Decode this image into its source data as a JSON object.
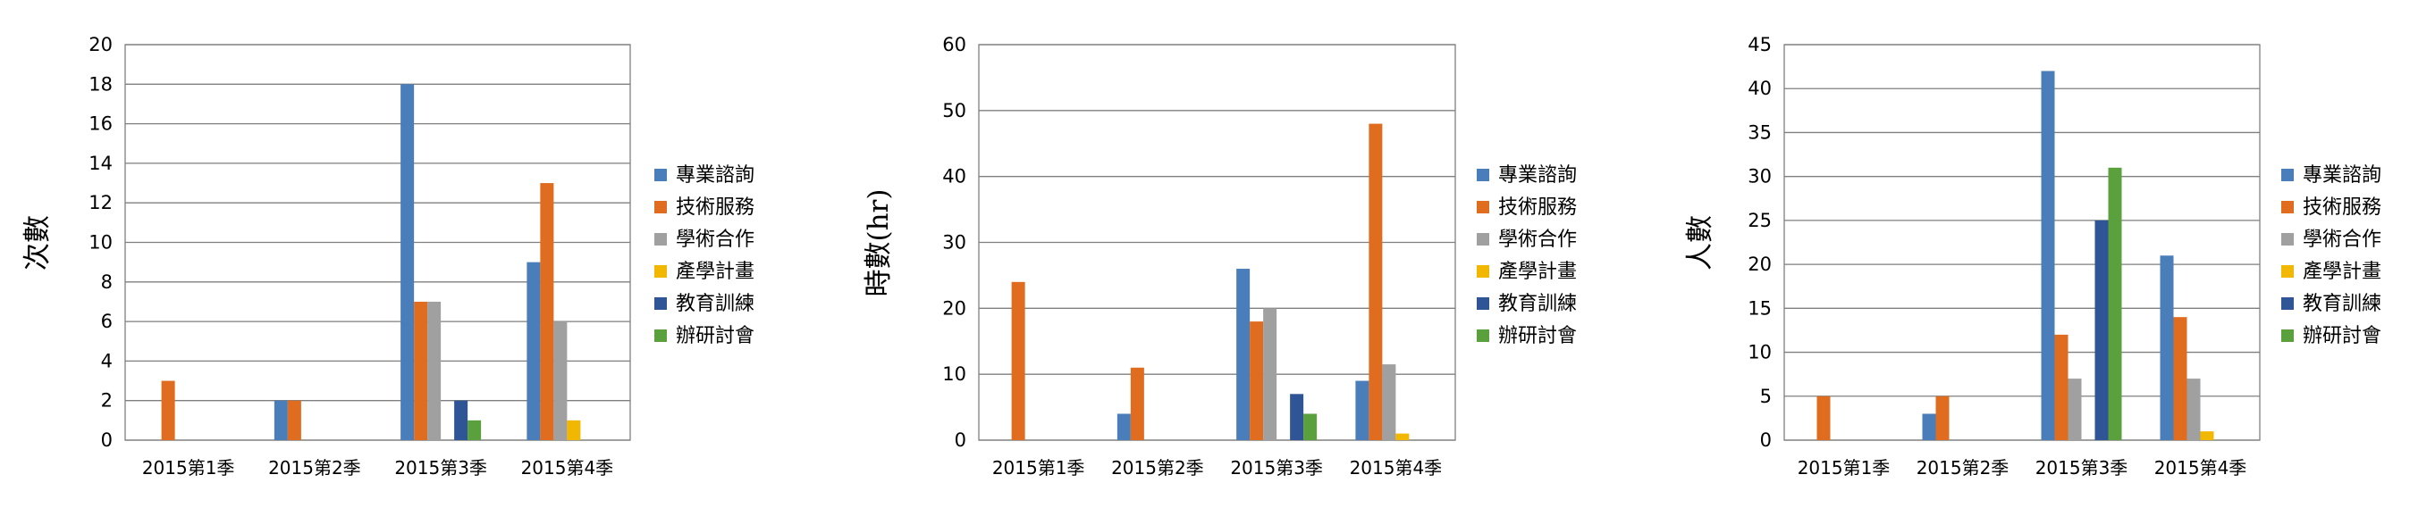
{
  "colors": {
    "專業諮詢": "#4a7ebb",
    "技術服務": "#e06c1f",
    "學術合作": "#a0a0a0",
    "產學計畫": "#f2b700",
    "教育訓練": "#2f5597",
    "辦研討會": "#5aa03c"
  },
  "chart_data": [
    {
      "type": "bar",
      "title": "",
      "xlabel": "",
      "ylabel": "次數",
      "ylim": [
        0,
        20
      ],
      "yticks": [
        0,
        2,
        4,
        6,
        8,
        10,
        12,
        14,
        16,
        18,
        20
      ],
      "grid": true,
      "legend_position": "right",
      "categories": [
        "2015第1季",
        "2015第2季",
        "2015第3季",
        "2015第4季"
      ],
      "series": [
        {
          "name": "專業諮詢",
          "values": [
            0,
            2,
            18,
            9
          ]
        },
        {
          "name": "技術服務",
          "values": [
            3,
            2,
            7,
            13
          ]
        },
        {
          "name": "學術合作",
          "values": [
            0,
            0,
            7,
            6
          ]
        },
        {
          "name": "產學計畫",
          "values": [
            0,
            0,
            0,
            1
          ]
        },
        {
          "name": "教育訓練",
          "values": [
            0,
            0,
            2,
            0
          ]
        },
        {
          "name": "辦研討會",
          "values": [
            0,
            0,
            1,
            0
          ]
        }
      ]
    },
    {
      "type": "bar",
      "title": "",
      "xlabel": "",
      "ylabel": "時數(hr)",
      "ylim": [
        0,
        60
      ],
      "yticks": [
        0,
        10,
        20,
        30,
        40,
        50,
        60
      ],
      "grid": true,
      "legend_position": "right",
      "categories": [
        "2015第1季",
        "2015第2季",
        "2015第3季",
        "2015第4季"
      ],
      "series": [
        {
          "name": "專業諮詢",
          "values": [
            0,
            4,
            26,
            9
          ]
        },
        {
          "name": "技術服務",
          "values": [
            24,
            11,
            18,
            48
          ]
        },
        {
          "name": "學術合作",
          "values": [
            0,
            0,
            20,
            11.5
          ]
        },
        {
          "name": "產學計畫",
          "values": [
            0,
            0,
            0,
            1
          ]
        },
        {
          "name": "教育訓練",
          "values": [
            0,
            0,
            7,
            0
          ]
        },
        {
          "name": "辦研討會",
          "values": [
            0,
            0,
            4,
            0
          ]
        }
      ]
    },
    {
      "type": "bar",
      "title": "",
      "xlabel": "",
      "ylabel": "人數",
      "ylim": [
        0,
        45
      ],
      "yticks": [
        0,
        5,
        10,
        15,
        20,
        25,
        30,
        35,
        40,
        45
      ],
      "grid": true,
      "legend_position": "right",
      "categories": [
        "2015第1季",
        "2015第2季",
        "2015第3季",
        "2015第4季"
      ],
      "series": [
        {
          "name": "專業諮詢",
          "values": [
            0,
            3,
            42,
            21
          ]
        },
        {
          "name": "技術服務",
          "values": [
            5,
            5,
            12,
            14
          ]
        },
        {
          "name": "學術合作",
          "values": [
            0,
            0,
            7,
            7
          ]
        },
        {
          "name": "產學計畫",
          "values": [
            0,
            0,
            0,
            1
          ]
        },
        {
          "name": "教育訓練",
          "values": [
            0,
            0,
            25,
            0
          ]
        },
        {
          "name": "辦研討會",
          "values": [
            0,
            0,
            31,
            0
          ]
        }
      ]
    }
  ]
}
